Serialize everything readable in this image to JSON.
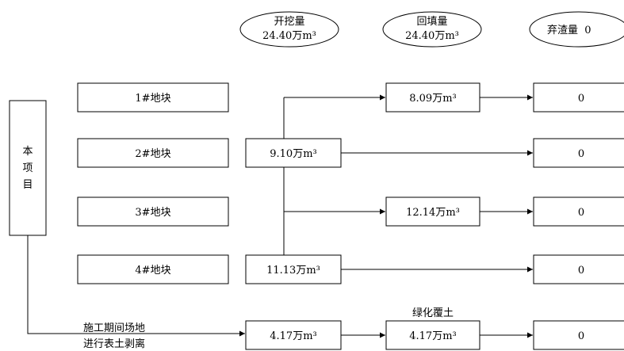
{
  "headers": {
    "excavation": [
      "开挖量",
      "24.40万m³"
    ],
    "fill": [
      "回填量",
      "24.40万m³"
    ],
    "waste": "弃渣量  0"
  },
  "project": [
    "本",
    "项",
    "目"
  ],
  "plots": [
    "1#地块",
    "2#地块",
    "3#地块",
    "4#地块"
  ],
  "excavation_values": [
    "9.10万m³",
    "11.13万m³",
    "4.17万m³"
  ],
  "fill_values": [
    "8.09万m³",
    "12.14万m³",
    "4.17万m³"
  ],
  "waste_values": [
    "0",
    "0",
    "0",
    "0",
    "0"
  ],
  "topsoil_label": [
    "施工期间场地",
    "进行表土剥离"
  ],
  "greening_label": "绿化覆土"
}
